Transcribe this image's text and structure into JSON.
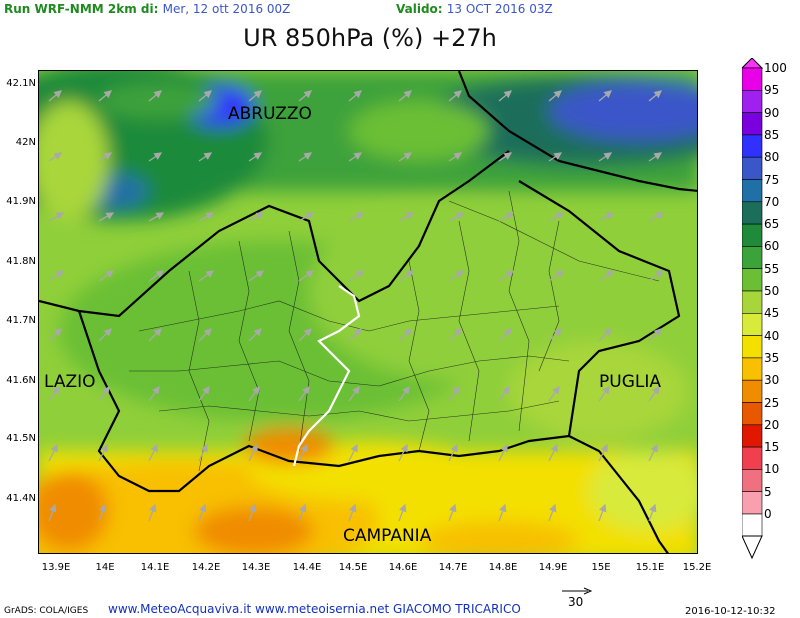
{
  "header": {
    "run_label": "Run WRF-NMM 2km di:",
    "run_date": "Mer, 12 ott 2016 00Z",
    "valid_label": "Valido:",
    "valid_date": "13 OCT 2016 03Z"
  },
  "title": "UR 850hPa (%) +27h",
  "axes": {
    "y_ticks": [
      "42.1N",
      "42N",
      "41.9N",
      "41.8N",
      "41.7N",
      "41.6N",
      "41.5N",
      "41.4N"
    ],
    "x_ticks": [
      "13.9E",
      "14E",
      "14.1E",
      "14.2E",
      "14.3E",
      "14.4E",
      "14.5E",
      "14.6E",
      "14.7E",
      "14.8E",
      "14.9E",
      "15E",
      "15.1E",
      "15.2E"
    ]
  },
  "regions": {
    "abruzzo": "ABRUZZO",
    "lazio": "LAZIO",
    "puglia": "PUGLIA",
    "campania": "CAMPANIA"
  },
  "legend": {
    "labels": [
      "100",
      "95",
      "90",
      "85",
      "80",
      "75",
      "70",
      "65",
      "60",
      "55",
      "50",
      "45",
      "40",
      "35",
      "30",
      "25",
      "20",
      "15",
      "10",
      "5",
      "0"
    ],
    "colors": [
      "#e800e8",
      "#a020f0",
      "#7a00e0",
      "#3030ff",
      "#3a56c8",
      "#2070a8",
      "#1b6e5a",
      "#1f8a3a",
      "#3ca23a",
      "#6abf35",
      "#a8d63a",
      "#d8ea3a",
      "#f3e000",
      "#f8c000",
      "#f08c00",
      "#e85800",
      "#e01800",
      "#f04050",
      "#f07080",
      "#f8a0b0",
      "#ffffff"
    ]
  },
  "wind_scale": {
    "value": "30"
  },
  "footer": {
    "grads": "GrADS: COLA/IGES",
    "credits": "www.MeteoAcquaviva.it www.meteoisernia.net GIACOMO TRICARICO",
    "timestamp": "2016-10-12-10:32"
  }
}
